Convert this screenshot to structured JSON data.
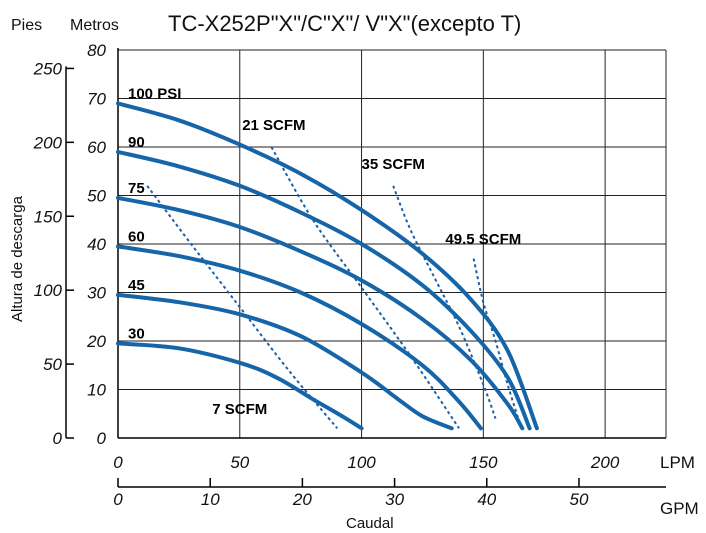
{
  "header": {
    "feet_label": "Pies",
    "meters_label": "Metros",
    "title": "TC-X252P\"X\"/C\"X\"/ V\"X\"(excepto T)"
  },
  "chart_data": {
    "type": "line",
    "title": "TC-X252P\"X\"/C\"X\"/ V\"X\"(excepto T)",
    "xlabel": "Caudal",
    "ylabel": "Altura de descarga",
    "x_unit_lpm": "LPM",
    "x_unit_gpm": "GPM",
    "xlim_lpm": [
      0,
      225
    ],
    "ylim_m": [
      0,
      80
    ],
    "grid": true,
    "x_ticks_lpm": [
      0,
      50,
      100,
      150,
      200
    ],
    "x_ticks_gpm": [
      0,
      10,
      20,
      30,
      40,
      50
    ],
    "y_ticks_m": [
      0,
      10,
      20,
      30,
      40,
      50,
      60,
      70,
      80
    ],
    "y_ticks_ft": [
      0,
      50,
      100,
      150,
      200,
      250
    ],
    "series": [
      {
        "name": "100 PSI",
        "x": [
          0,
          25,
          50,
          75,
          100,
          125,
          145,
          160,
          172
        ],
        "y": [
          69,
          65.5,
          60.5,
          54.5,
          47,
          38,
          28.5,
          18,
          2
        ]
      },
      {
        "name": "90",
        "x": [
          0,
          25,
          50,
          75,
          100,
          125,
          145,
          160,
          169
        ],
        "y": [
          59,
          56,
          52,
          46.5,
          40,
          31.5,
          22,
          12.5,
          2
        ]
      },
      {
        "name": "75",
        "x": [
          0,
          25,
          50,
          75,
          100,
          125,
          145,
          160,
          166
        ],
        "y": [
          49.5,
          47,
          43.5,
          38.5,
          32.5,
          24.5,
          16,
          7,
          2
        ]
      },
      {
        "name": "60",
        "x": [
          0,
          25,
          50,
          75,
          100,
          125,
          140,
          149
        ],
        "y": [
          39.5,
          37.5,
          34.5,
          30,
          23.5,
          15,
          7.5,
          2
        ]
      },
      {
        "name": "45",
        "x": [
          0,
          25,
          50,
          75,
          100,
          115,
          125,
          137
        ],
        "y": [
          29.5,
          28,
          25.5,
          21,
          13.5,
          8,
          4.5,
          2
        ]
      },
      {
        "name": "30",
        "x": [
          0,
          25,
          50,
          65,
          80,
          92,
          100
        ],
        "y": [
          19.5,
          18.5,
          15.5,
          12.5,
          8,
          4.5,
          2
        ]
      }
    ],
    "air_consumption": [
      {
        "name": "7 SCFM",
        "x": [
          12,
          30,
          50,
          70,
          90
        ],
        "y": [
          52,
          40,
          27,
          14,
          2
        ]
      },
      {
        "name": "21 SCFM",
        "x": [
          63,
          80,
          100,
          120,
          140
        ],
        "y": [
          60,
          45,
          31,
          17,
          2
        ]
      },
      {
        "name": "35 SCFM",
        "x": [
          113,
          120,
          130,
          140,
          150,
          155
        ],
        "y": [
          52,
          43,
          33,
          23,
          11,
          4
        ]
      },
      {
        "name": "49.5 SCFM",
        "x": [
          146,
          150,
          155,
          160,
          165
        ],
        "y": [
          37,
          28,
          20,
          11,
          3
        ]
      }
    ]
  }
}
